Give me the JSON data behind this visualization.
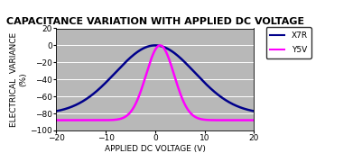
{
  "title": "CAPACITANCE VARIATION WITH APPLIED DC VOLTAGE",
  "xlabel": "APPLIED DC VOLTAGE (V)",
  "ylabel_line1": "ELECTRICAL  VARIANCE",
  "ylabel_line2": "(%)",
  "xlim": [
    -20,
    20
  ],
  "ylim": [
    -100,
    20
  ],
  "yticks": [
    20,
    0,
    -20,
    -40,
    -60,
    -80,
    -100
  ],
  "xticks": [
    -20,
    -10,
    0,
    10,
    20
  ],
  "bg_color": "#c0c0c0",
  "plot_bg_color": "#b8b8b8",
  "x7r_color": "#00008B",
  "y5v_color": "#FF00FF",
  "legend_labels": [
    "X7R",
    "Y5V"
  ],
  "title_fontsize": 8,
  "axis_label_fontsize": 6.5,
  "tick_fontsize": 6.5,
  "x7r_peak": 0.0,
  "x7r_at_edge": -70.0,
  "y5v_peak": -3.0,
  "y5v_peak_x": 1.0,
  "y5v_at_edge": -88.0,
  "y5v_k": 0.048,
  "x7r_a": 0.1875
}
